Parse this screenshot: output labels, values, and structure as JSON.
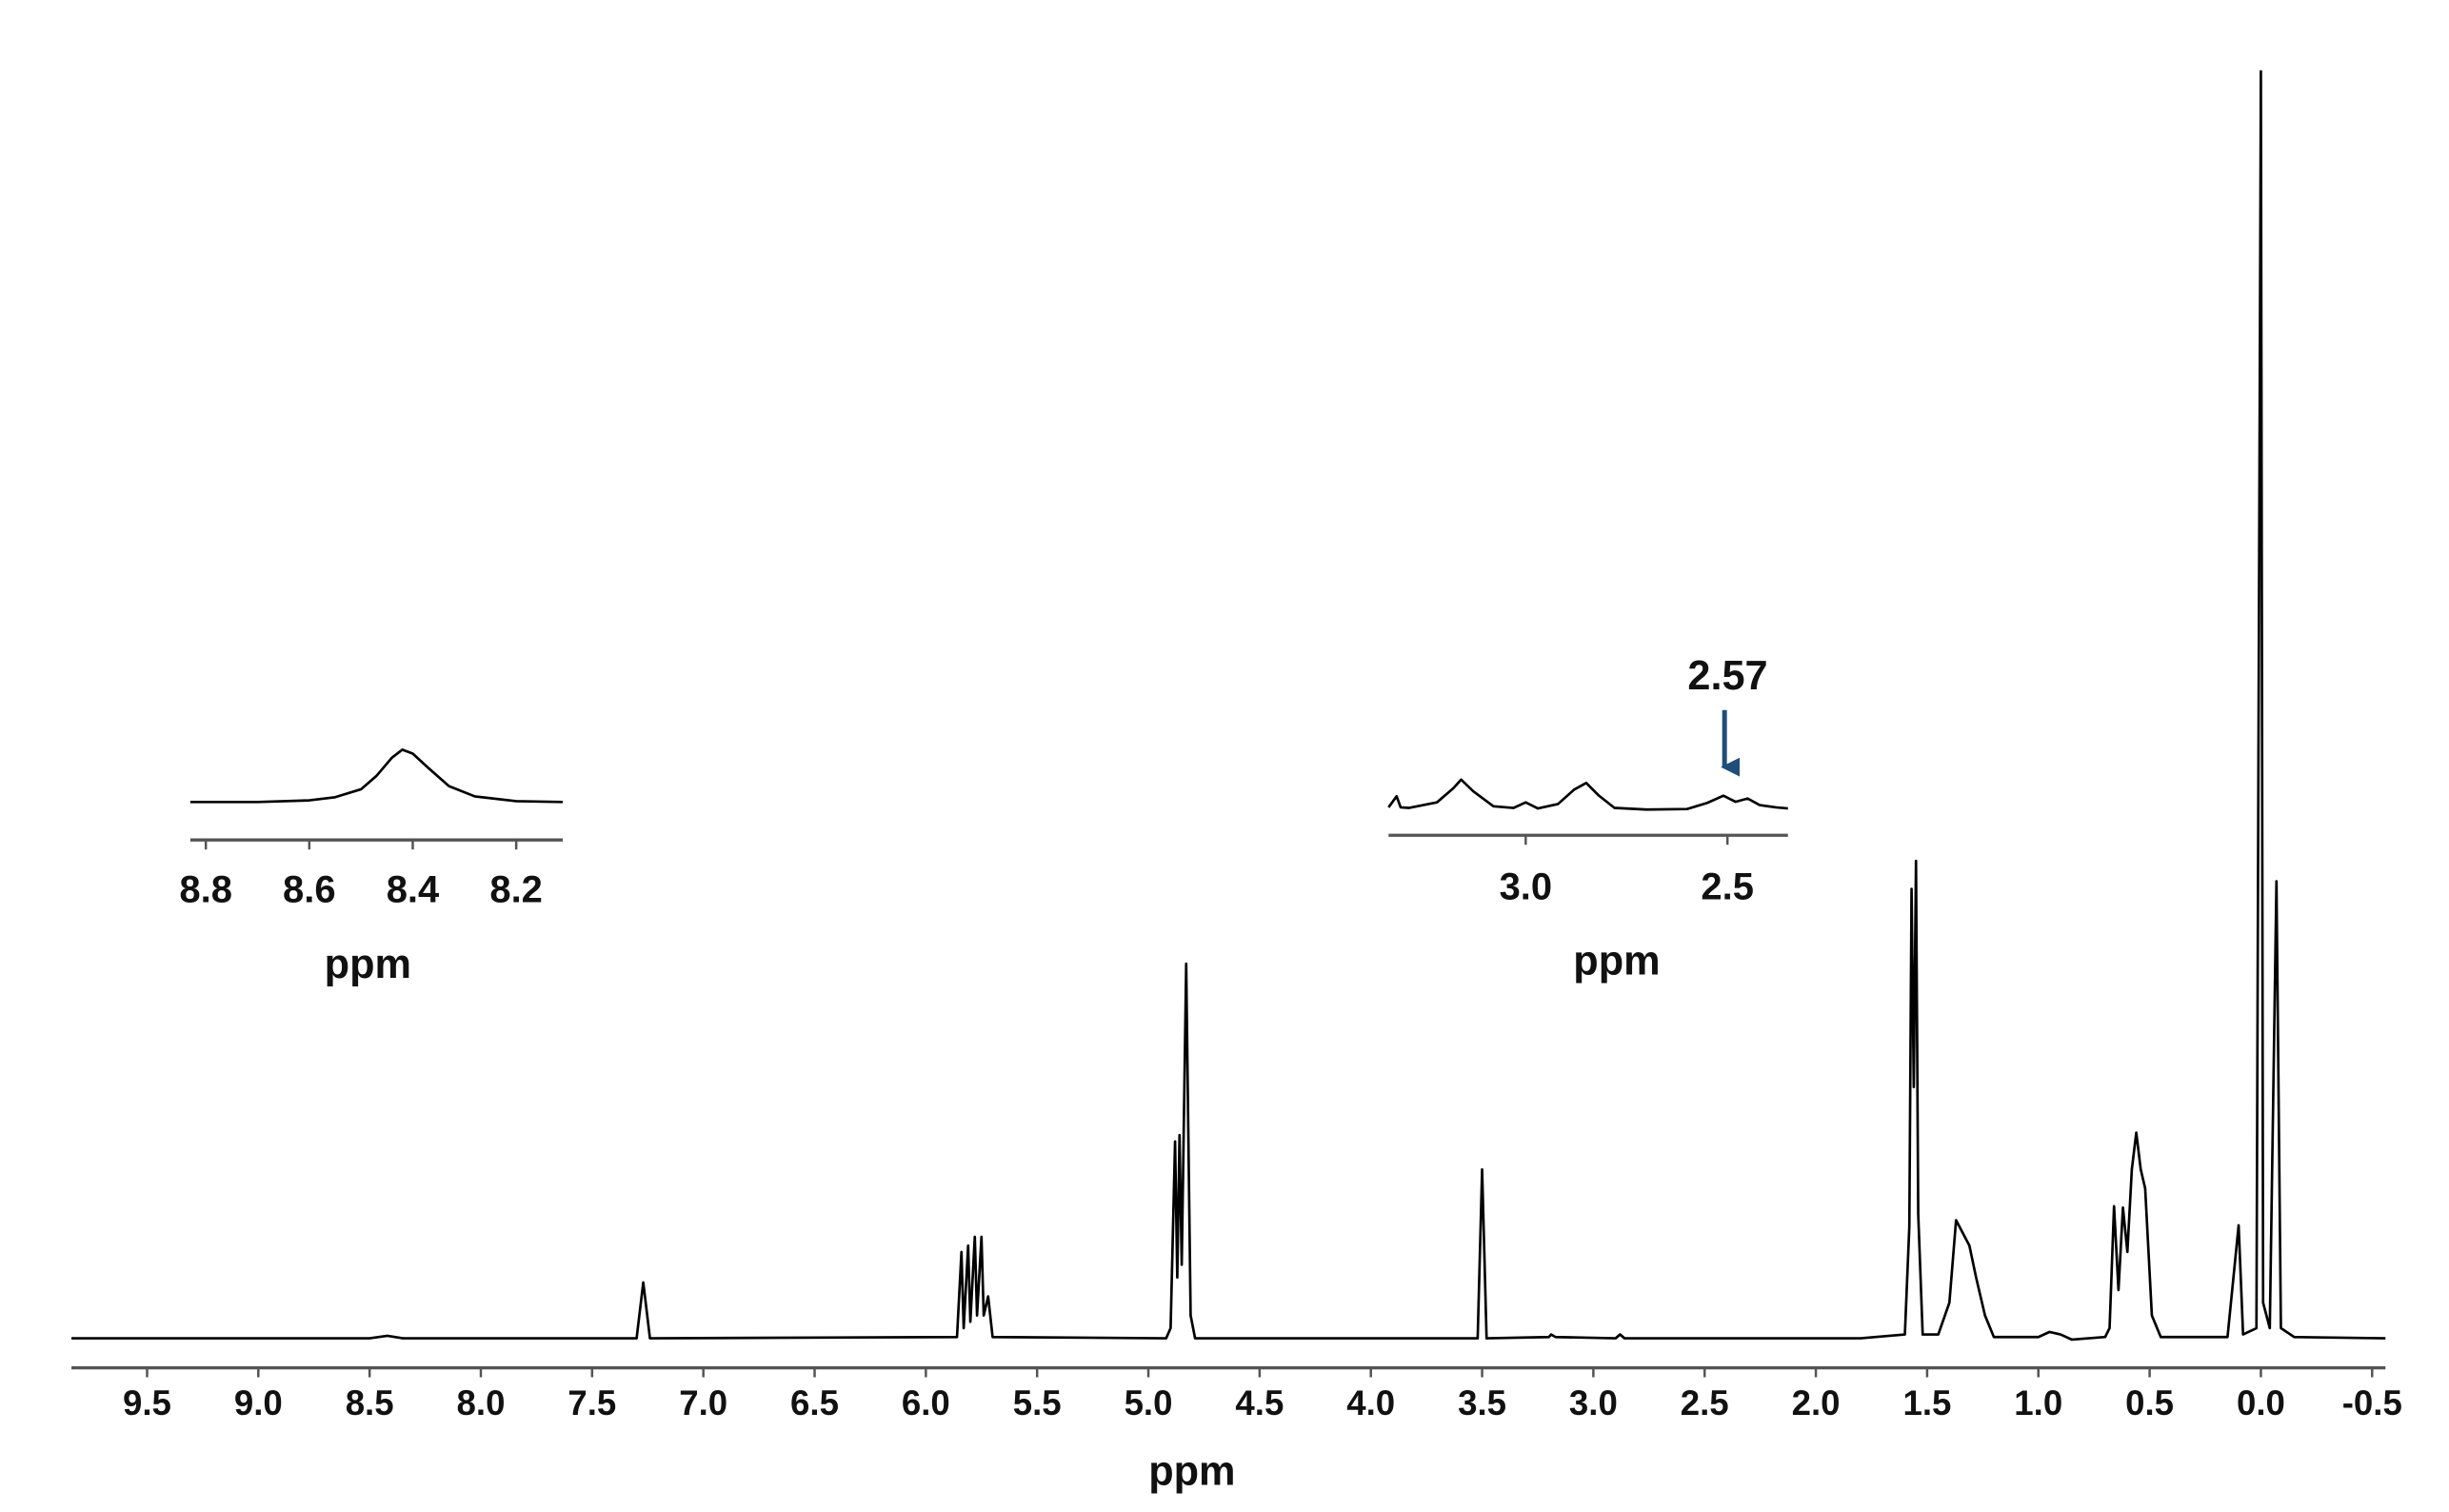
{
  "chart_data": [
    {
      "type": "line",
      "x_label": "ppm",
      "x": [
        9.84,
        8.5,
        8.42,
        8.35,
        7.3,
        7.27,
        7.24,
        5.86,
        5.84,
        5.83,
        5.81,
        5.8,
        5.78,
        5.77,
        5.75,
        5.74,
        5.72,
        5.7,
        4.92,
        4.9,
        4.88,
        4.87,
        4.86,
        4.85,
        4.83,
        4.81,
        4.79,
        3.52,
        3.5,
        3.48,
        3.2,
        3.19,
        3.17,
        2.9,
        2.88,
        2.86,
        2.5,
        1.8,
        1.6,
        1.58,
        1.57,
        1.56,
        1.55,
        1.54,
        1.52,
        1.45,
        1.4,
        1.37,
        1.34,
        1.31,
        1.28,
        1.24,
        1.2,
        1.0,
        0.95,
        0.9,
        0.85,
        0.7,
        0.68,
        0.66,
        0.64,
        0.62,
        0.6,
        0.58,
        0.56,
        0.54,
        0.52,
        0.49,
        0.45,
        0.15,
        0.1,
        0.08,
        0.02,
        0.0,
        -0.01,
        -0.04,
        -0.07,
        -0.09,
        -0.15,
        -0.56
      ],
      "values": [
        0.2,
        0.2,
        0.4,
        0.2,
        0.2,
        4.6,
        0.2,
        0.3,
        7.0,
        1,
        7.5,
        1.5,
        8.2,
        2,
        8.2,
        2,
        3.5,
        0.3,
        0.2,
        1,
        15.7,
        5,
        16.2,
        6,
        29.7,
        2,
        0.2,
        0.2,
        13.5,
        0.2,
        0.3,
        0.5,
        0.3,
        0.2,
        0.5,
        0.2,
        0.2,
        0.2,
        0.5,
        9,
        35.6,
        20,
        37.8,
        10,
        0.5,
        0.5,
        3,
        9.5,
        8.5,
        7.5,
        5,
        2,
        0.3,
        0.3,
        0.7,
        0.5,
        0.1,
        0.3,
        1,
        10.6,
        4,
        10.5,
        7,
        13.5,
        16.4,
        13.5,
        12,
        2,
        0.3,
        0.3,
        9.1,
        0.5,
        1,
        100,
        3,
        1,
        36.2,
        1,
        0.3,
        0.2
      ],
      "xlim": [
        9.84,
        -0.56
      ],
      "ylim": [
        0,
        100
      ],
      "xticks": [
        9.5,
        {
          "value": 9,
          "label": "9.0"
        },
        8.5,
        {
          "value": 8,
          "label": "8.0"
        },
        7.5,
        {
          "value": 7,
          "label": "7.0"
        },
        6.5,
        {
          "value": 6,
          "label": "6.0"
        },
        5.5,
        {
          "value": 5,
          "label": "5.0"
        },
        4.5,
        {
          "value": 4,
          "label": "4.0"
        },
        3.5,
        {
          "value": 3,
          "label": "3.0"
        },
        2.5,
        {
          "value": 2,
          "label": "2.0"
        },
        1.5,
        {
          "value": 1,
          "label": "1.0"
        },
        0.5,
        {
          "value": 0,
          "label": "0.0"
        },
        -0.5
      ],
      "color": "#000000"
    },
    {
      "type": "line",
      "x_label": "ppm",
      "x": [
        8.83,
        8.7,
        8.6,
        8.55,
        8.5,
        8.47,
        8.44,
        8.42,
        8.4,
        8.37,
        8.33,
        8.28,
        8.2,
        8.11
      ],
      "values": [
        1.2,
        1.2,
        1.4,
        1.8,
        2.8,
        4.5,
        6.8,
        7.8,
        7.3,
        5.5,
        3.2,
        1.9,
        1.3,
        1.2
      ],
      "xlim": [
        8.83,
        8.11
      ],
      "ylim": [
        0,
        10
      ],
      "xticks": [
        8.8,
        8.6,
        8.4,
        8.2
      ],
      "color": "#000000"
    },
    {
      "type": "line",
      "x_label": "ppm",
      "annotation": "2.57",
      "x": [
        3.34,
        3.32,
        3.31,
        3.29,
        3.22,
        3.18,
        3.16,
        3.13,
        3.08,
        3.03,
        3.0,
        2.97,
        2.92,
        2.88,
        2.85,
        2.82,
        2.78,
        2.7,
        2.6,
        2.55,
        2.51,
        2.48,
        2.45,
        2.42,
        2.38,
        2.35
      ],
      "values": [
        1.6,
        3.6,
        1.6,
        1.5,
        2.5,
        5.0,
        6.6,
        4.5,
        1.8,
        1.5,
        2.5,
        1.4,
        2.2,
        4.8,
        6.0,
        3.8,
        1.5,
        1.2,
        1.3,
        2.4,
        3.7,
        2.6,
        3.2,
        2.0,
        1.6,
        1.4
      ],
      "xlim": [
        3.34,
        2.35
      ],
      "ylim": [
        0,
        10
      ],
      "xticks": [
        {
          "value": 3,
          "label": "3.0"
        },
        2.5
      ],
      "color": "#000000"
    }
  ]
}
